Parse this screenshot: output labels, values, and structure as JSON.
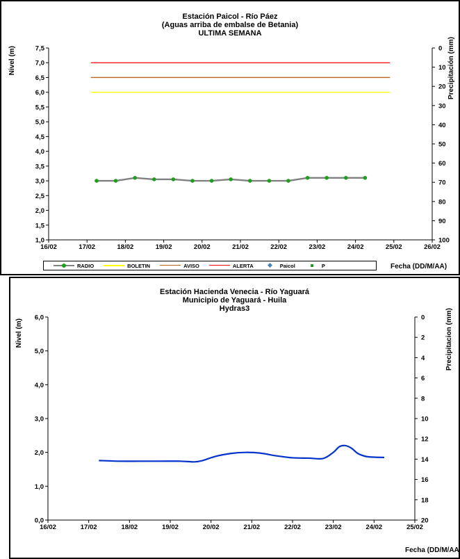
{
  "chart_data": [
    {
      "type": "line",
      "title": "Estación Paicol - Río Páez",
      "subtitle": "(Aguas arriba de embalse de Betania)",
      "period": "ULTIMA SEMANA",
      "ylabel": "Nivel (m)",
      "y2label": "Precipitación (mm)",
      "xlabel": "Fecha (DD/M/AA)",
      "x_ticks": [
        "16/02",
        "17/02",
        "18/02",
        "19/02",
        "20/02",
        "21/02",
        "22/02",
        "23/02",
        "24/02",
        "25/02",
        "26/02"
      ],
      "ylim": [
        1.0,
        7.5
      ],
      "y_ticks": [
        "1,0",
        "1,5",
        "2,0",
        "2,5",
        "3,0",
        "3,5",
        "4,0",
        "4,5",
        "5,0",
        "5,5",
        "6,0",
        "6,5",
        "7,0",
        "7,5"
      ],
      "y2lim": [
        0,
        100
      ],
      "y2_ticks": [
        "0",
        "10",
        "20",
        "30",
        "40",
        "50",
        "60",
        "70",
        "80",
        "90",
        "100"
      ],
      "y2_inverted": true,
      "grid": false,
      "legend_position": "bottom",
      "series": [
        {
          "name": "RADIO",
          "color": "#808080",
          "marker_color": "#1e9e1e",
          "x": [
            17.25,
            17.75,
            18.25,
            18.75,
            19.25,
            19.75,
            20.25,
            20.75,
            21.25,
            21.75,
            22.25,
            22.75,
            23.25,
            23.75,
            24.25
          ],
          "values": [
            3.0,
            3.0,
            3.1,
            3.05,
            3.05,
            3.0,
            3.0,
            3.05,
            3.0,
            3.0,
            3.0,
            3.1,
            3.1,
            3.1,
            3.1
          ]
        },
        {
          "name": "BOLETIN",
          "color": "#ffff00",
          "x": [
            17.1,
            24.9
          ],
          "values": [
            6.0,
            6.0
          ]
        },
        {
          "name": "AVISO",
          "color": "#b5651d",
          "x": [
            17.1,
            24.9
          ],
          "values": [
            6.5,
            6.5
          ]
        },
        {
          "name": "ALERTA",
          "color": "#ff0000",
          "x": [
            17.1,
            24.9
          ],
          "values": [
            7.0,
            7.0
          ]
        },
        {
          "name": "Paicol",
          "color": "#4f81bd",
          "x": [],
          "values": []
        },
        {
          "name": "P",
          "color": "#1e9e1e",
          "x": [],
          "values": []
        }
      ]
    },
    {
      "type": "line",
      "title": "Estación Hacienda Venecia - Río Yaguará",
      "subtitle": "Municipio de Yaguará - Huila",
      "period": "Hydras3",
      "ylabel": "Nivel (m)",
      "y2label": "Precipitacion (mm)",
      "xlabel": "Fecha (DD/M/AA)",
      "x_ticks": [
        "16/02",
        "17/02",
        "18/02",
        "19/02",
        "20/02",
        "21/02",
        "22/02",
        "23/02",
        "24/02",
        "25/02"
      ],
      "ylim": [
        0.0,
        6.0
      ],
      "y_ticks": [
        "0,0",
        "1,0",
        "2,0",
        "3,0",
        "4,0",
        "5,0",
        "6,0"
      ],
      "y2lim": [
        0,
        20
      ],
      "y2_ticks": [
        "0",
        "2",
        "4",
        "6",
        "8",
        "10",
        "12",
        "14",
        "16",
        "18",
        "20"
      ],
      "y2_inverted": true,
      "grid": false,
      "series": [
        {
          "color": "#0033cc",
          "x": [
            17.25,
            17.75,
            18.25,
            18.75,
            19.25,
            19.6,
            19.8,
            20.1,
            20.5,
            20.85,
            21.2,
            21.6,
            22.0,
            22.4,
            22.75,
            23.0,
            23.15,
            23.3,
            23.45,
            23.6,
            23.8,
            24.0,
            24.25
          ],
          "values": [
            1.76,
            1.74,
            1.74,
            1.74,
            1.74,
            1.72,
            1.76,
            1.88,
            1.97,
            2.0,
            1.98,
            1.9,
            1.84,
            1.83,
            1.82,
            2.0,
            2.17,
            2.2,
            2.12,
            1.97,
            1.88,
            1.86,
            1.85
          ]
        }
      ]
    }
  ]
}
